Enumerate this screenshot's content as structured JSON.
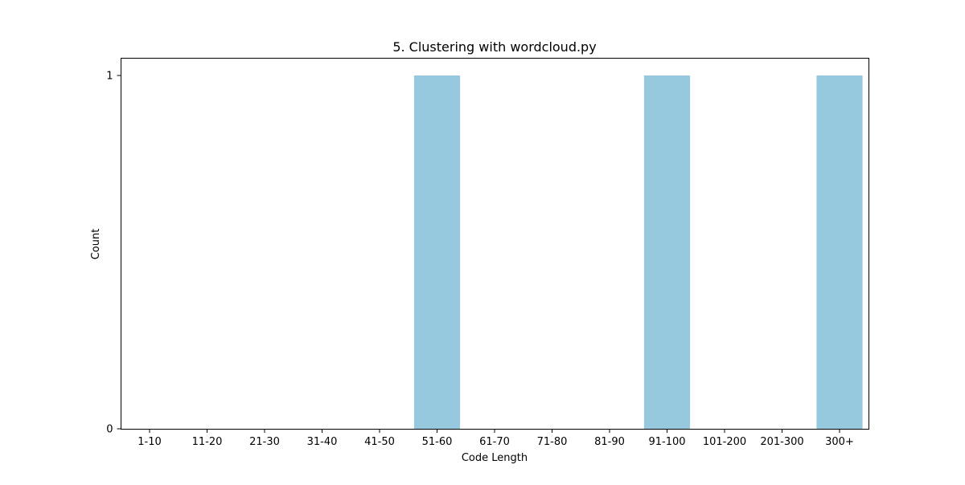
{
  "chart_data": {
    "type": "bar",
    "title": "5. Clustering with wordcloud.py",
    "xlabel": "Code Length",
    "ylabel": "Count",
    "categories": [
      "1-10",
      "11-20",
      "21-30",
      "31-40",
      "41-50",
      "51-60",
      "61-70",
      "71-80",
      "81-90",
      "91-100",
      "101-200",
      "201-300",
      "300+"
    ],
    "values": [
      0,
      0,
      0,
      0,
      0,
      1,
      0,
      0,
      0,
      1,
      0,
      0,
      1
    ],
    "ylim": [
      0,
      1
    ],
    "yticks": [
      "0",
      "1"
    ],
    "bar_color": "#96c9de",
    "grid": false,
    "legend": false
  }
}
